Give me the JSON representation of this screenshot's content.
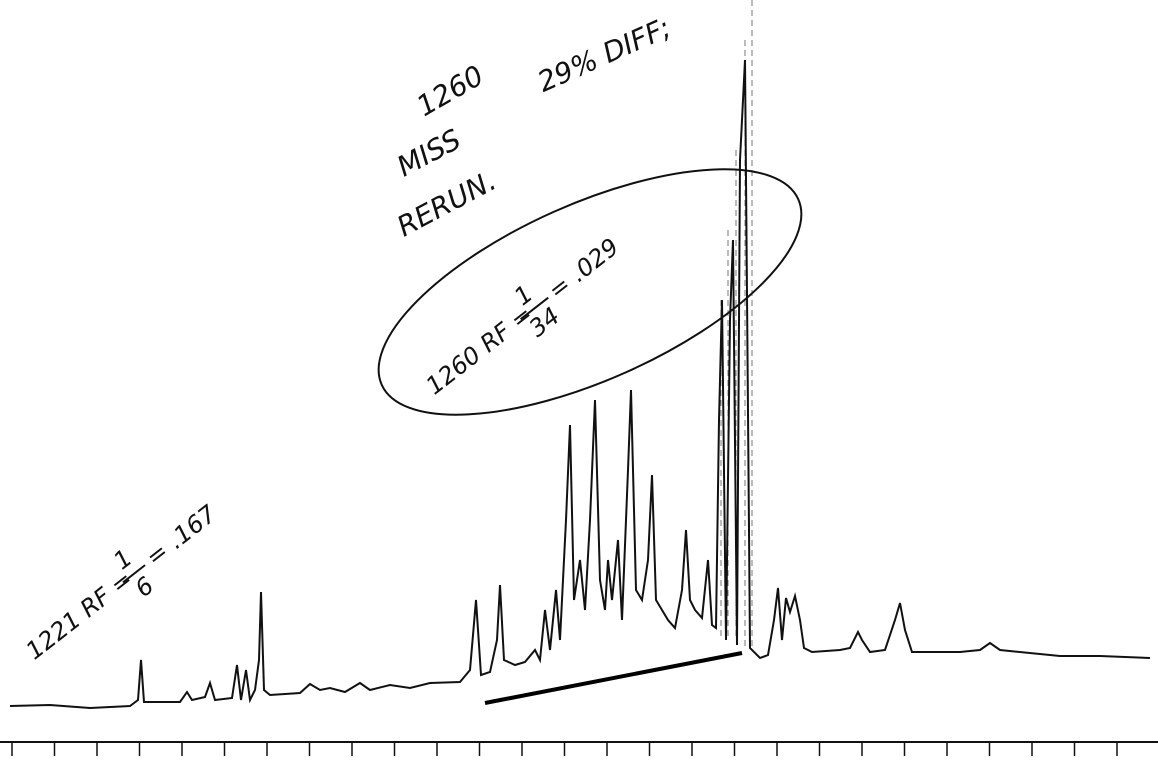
{
  "annotations": {
    "peak_id": "1260",
    "miss": "MISS",
    "diff": "29% DIFF;",
    "rerun": "RERUN.",
    "rf_1260": {
      "label": "1260 RF =",
      "numerator": "1",
      "denominator": "34",
      "result": "= .029"
    },
    "rf_1221": {
      "label": "1221 RF =",
      "numerator": "1",
      "denominator": "6",
      "result": "= .167"
    }
  }
}
